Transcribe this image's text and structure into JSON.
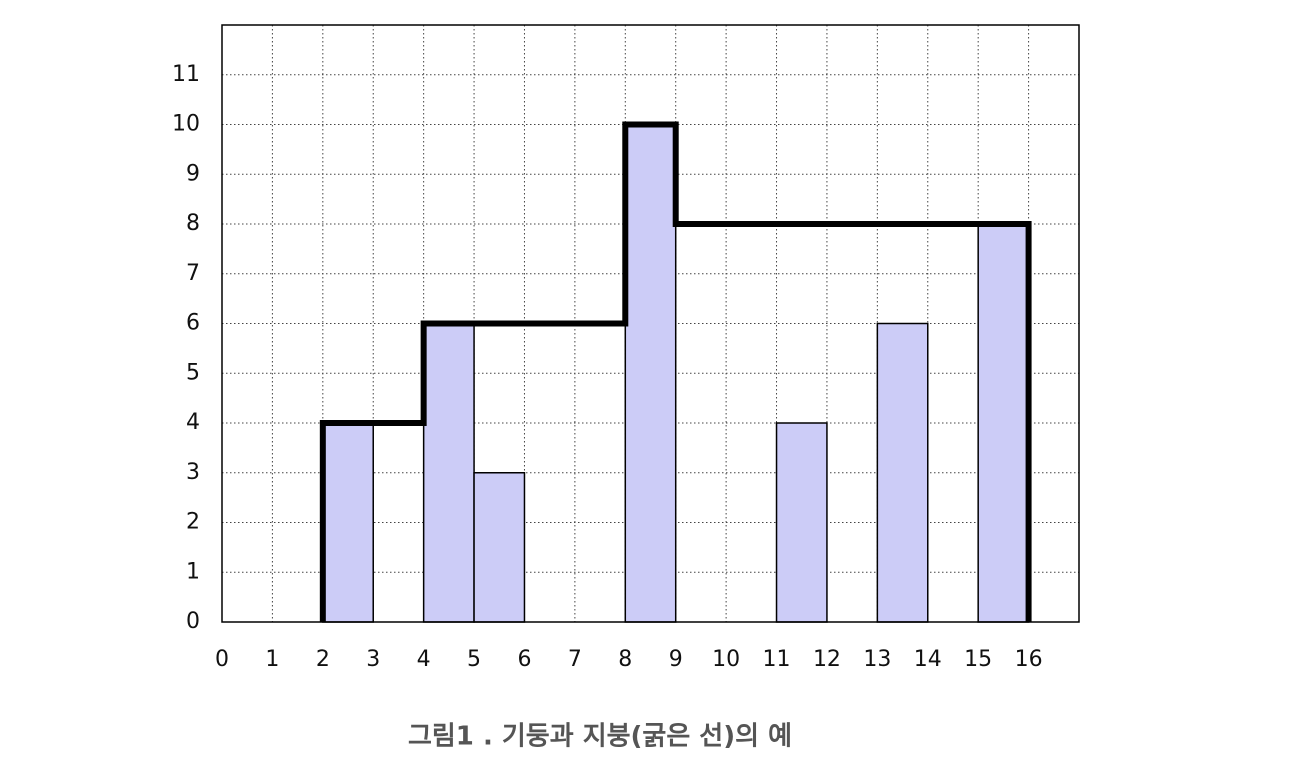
{
  "chart_data": {
    "type": "bar",
    "caption": "그림1 . 기둥과 지붕(굵은 선)의 예",
    "xlim": [
      0,
      17
    ],
    "ylim": [
      0,
      12
    ],
    "xticks": [
      0,
      1,
      2,
      3,
      4,
      5,
      6,
      7,
      8,
      9,
      10,
      11,
      12,
      13,
      14,
      15,
      16
    ],
    "yticks": [
      0,
      1,
      2,
      3,
      4,
      5,
      6,
      7,
      8,
      9,
      10,
      11
    ],
    "grid": true,
    "bar_width": 1,
    "bars": {
      "color": "#ccccf7",
      "x": [
        2,
        4,
        5,
        8,
        11,
        13,
        15
      ],
      "values": [
        4,
        6,
        3,
        10,
        4,
        6,
        8
      ]
    },
    "roof": {
      "color": "#000000",
      "x": [
        2,
        2,
        4,
        4,
        8,
        8,
        9,
        9,
        16,
        16
      ],
      "values": [
        0,
        4,
        4,
        6,
        6,
        10,
        10,
        8,
        8,
        0
      ]
    }
  }
}
